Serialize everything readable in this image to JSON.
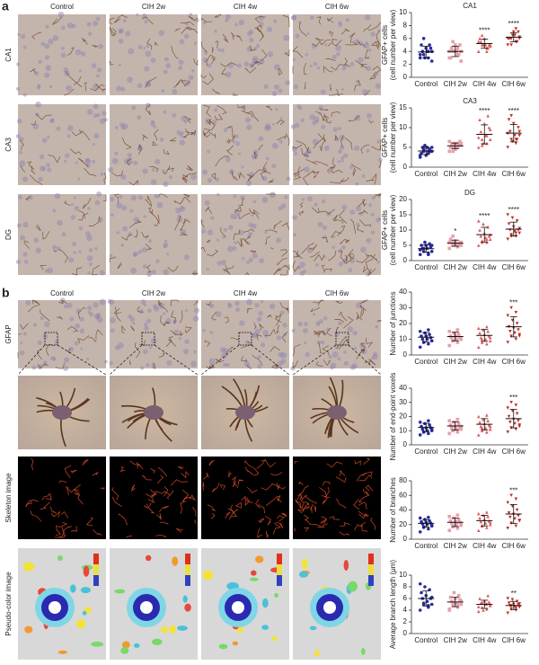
{
  "panel_a": {
    "label": "a",
    "columns": [
      "Control",
      "CIH 2w",
      "CIH 4w",
      "CIH 6w"
    ],
    "rows": [
      "CA1",
      "CA3",
      "DG"
    ]
  },
  "panel_b": {
    "label": "b",
    "columns": [
      "Control",
      "CIH 2w",
      "CIH 4w",
      "CIH 6w"
    ],
    "rows": [
      "GFAP",
      "Skeleton image",
      "Pseudo-color image"
    ]
  },
  "chart_data": [
    {
      "type": "strip",
      "title": "CA1",
      "ylabel": [
        "GFAP+ cells",
        "(cell number per view)"
      ],
      "categories": [
        "Control",
        "CIH 2w",
        "CIH 4w",
        "CIH 6w"
      ],
      "ylim": [
        0,
        10
      ],
      "yticks": [
        0,
        2,
        4,
        6,
        8,
        10
      ],
      "significance": [
        null,
        null,
        "****",
        "****"
      ],
      "series": [
        {
          "color": "#2b2b9c",
          "marker": "circle",
          "mean": 3.9,
          "sd": 0.9,
          "values": [
            3,
            3,
            3.5,
            4,
            4,
            4,
            4.5,
            4.5,
            5,
            5,
            3,
            3.5,
            4,
            6,
            2.5
          ]
        },
        {
          "color": "#e8a0aa",
          "marker": "square",
          "mean": 4.0,
          "sd": 0.8,
          "values": [
            3,
            3.5,
            4,
            4,
            4,
            4.5,
            5,
            5,
            3,
            3.5,
            4,
            4,
            4.5,
            5.5,
            2.5
          ]
        },
        {
          "color": "#e05a5a",
          "marker": "triangle",
          "mean": 5.2,
          "sd": 0.7,
          "values": [
            4,
            4.5,
            5,
            5,
            5,
            5.5,
            5,
            6,
            6,
            4.5,
            5,
            5.5,
            4,
            6.5,
            4.8
          ]
        },
        {
          "color": "#c0302a",
          "marker": "down",
          "mean": 6.2,
          "sd": 0.7,
          "values": [
            5,
            5.5,
            6,
            6,
            6.5,
            6,
            7,
            7,
            6,
            5.5,
            6.5,
            6,
            7.5,
            5,
            6.2
          ]
        }
      ]
    },
    {
      "type": "strip",
      "title": "CA3",
      "ylabel": [
        "GFAP+ cells",
        "(cell number per view)"
      ],
      "categories": [
        "Control",
        "CIH 2w",
        "CIH 4w",
        "CIH 6w"
      ],
      "ylim": [
        0,
        15
      ],
      "yticks": [
        0,
        5,
        10,
        15
      ],
      "significance": [
        null,
        null,
        "****",
        "****"
      ],
      "series": [
        {
          "color": "#2b2b9c",
          "marker": "circle",
          "mean": 4.1,
          "sd": 0.9,
          "values": [
            3,
            3.5,
            4,
            4,
            5,
            5,
            4,
            3,
            3.5,
            4.5,
            5.5,
            2.5,
            4,
            4.5,
            5
          ]
        },
        {
          "color": "#e8a0aa",
          "marker": "square",
          "mean": 5.4,
          "sd": 0.7,
          "values": [
            4,
            5,
            5,
            5.5,
            6,
            6,
            6.5,
            4.5,
            5,
            5.5,
            6,
            6.5,
            5,
            4,
            6
          ]
        },
        {
          "color": "#e05a5a",
          "marker": "triangle",
          "mean": 8.3,
          "sd": 2.4,
          "values": [
            5,
            6,
            7,
            7,
            8,
            9,
            10,
            11,
            12,
            13,
            6,
            7.5,
            8,
            5.5,
            9.5
          ]
        },
        {
          "color": "#c0302a",
          "marker": "down",
          "mean": 8.6,
          "sd": 2.2,
          "values": [
            5,
            6,
            7,
            8,
            8,
            9,
            10,
            11,
            12,
            7,
            6.5,
            8.5,
            7,
            13,
            9
          ]
        }
      ]
    },
    {
      "type": "strip",
      "title": "DG",
      "ylabel": [
        "GFAP+ cells",
        "(cell number per view)"
      ],
      "categories": [
        "Control",
        "CIH 2w",
        "CIH 4w",
        "CIH 6w"
      ],
      "ylim": [
        0,
        20
      ],
      "yticks": [
        0,
        5,
        10,
        15,
        20
      ],
      "significance": [
        null,
        "*",
        "****",
        "****"
      ],
      "series": [
        {
          "color": "#2b2b9c",
          "marker": "circle",
          "mean": 3.9,
          "sd": 1.2,
          "values": [
            2,
            2,
            3,
            3,
            4,
            4,
            4.5,
            5,
            5,
            5.5,
            6,
            3.5,
            2.5,
            4,
            5
          ]
        },
        {
          "color": "#e8a0aa",
          "marker": "square",
          "mean": 5.7,
          "sd": 1.0,
          "values": [
            4,
            4.5,
            5,
            5,
            5.5,
            6,
            6,
            6.5,
            7,
            5,
            5.5,
            6,
            4.5,
            8,
            6
          ]
        },
        {
          "color": "#e05a5a",
          "marker": "triangle",
          "mean": 8.5,
          "sd": 2.4,
          "values": [
            5,
            6,
            6.5,
            7,
            7.5,
            8,
            8,
            9,
            10,
            11,
            12,
            13,
            7,
            6,
            8.5
          ]
        },
        {
          "color": "#c0302a",
          "marker": "down",
          "mean": 10.3,
          "sd": 2.3,
          "values": [
            7,
            8,
            8.5,
            9,
            9.5,
            10,
            10,
            11,
            12,
            13,
            14,
            15,
            9,
            8,
            10.5
          ]
        }
      ]
    },
    {
      "type": "strip",
      "ylabel": [
        "Number of junctions"
      ],
      "categories": [
        "Control",
        "CIH 2w",
        "CIH 4w",
        "CIH 6w"
      ],
      "ylim": [
        0,
        40
      ],
      "yticks": [
        0,
        10,
        20,
        30,
        40
      ],
      "significance": [
        null,
        null,
        null,
        "***"
      ],
      "series": [
        {
          "color": "#2b2b9c",
          "marker": "circle",
          "mean": 11.3,
          "sd": 3.0,
          "values": [
            5,
            7,
            8,
            9,
            10,
            10,
            11,
            12,
            12,
            13,
            14,
            15,
            16,
            8,
            9
          ]
        },
        {
          "color": "#e8a0aa",
          "marker": "square",
          "mean": 11.7,
          "sd": 2.7,
          "values": [
            6,
            8,
            9,
            10,
            10,
            11,
            11,
            12,
            12,
            13,
            14,
            15,
            16,
            9,
            10
          ]
        },
        {
          "color": "#e05a5a",
          "marker": "triangle",
          "mean": 12.4,
          "sd": 3.8,
          "values": [
            5,
            7,
            8,
            9,
            10,
            11,
            12,
            13,
            14,
            15,
            16,
            17,
            18,
            10,
            11
          ]
        },
        {
          "color": "#c0302a",
          "marker": "down",
          "mean": 17.9,
          "sd": 6.4,
          "values": [
            8,
            10,
            12,
            13,
            14,
            15,
            16,
            17,
            18,
            20,
            22,
            25,
            27,
            30,
            12
          ]
        }
      ]
    },
    {
      "type": "strip",
      "ylabel": [
        "Number of end-point voxels"
      ],
      "categories": [
        "Control",
        "CIH 2w",
        "CIH 4w",
        "CIH 6w"
      ],
      "ylim": [
        0,
        40
      ],
      "yticks": [
        0,
        10,
        20,
        30,
        40
      ],
      "significance": [
        null,
        null,
        null,
        "***"
      ],
      "series": [
        {
          "color": "#2b2b9c",
          "marker": "circle",
          "mean": 12.3,
          "sd": 2.9,
          "values": [
            7,
            8,
            9,
            10,
            10,
            11,
            12,
            12,
            13,
            14,
            15,
            16,
            17,
            9,
            11
          ]
        },
        {
          "color": "#e8a0aa",
          "marker": "square",
          "mean": 13.3,
          "sd": 2.9,
          "values": [
            8,
            9,
            10,
            11,
            11,
            12,
            12,
            13,
            14,
            15,
            16,
            17,
            18,
            10,
            13
          ]
        },
        {
          "color": "#e05a5a",
          "marker": "triangle",
          "mean": 14.5,
          "sd": 4.0,
          "values": [
            7,
            9,
            10,
            11,
            12,
            13,
            14,
            15,
            16,
            17,
            18,
            20,
            21,
            12,
            13
          ]
        },
        {
          "color": "#c0302a",
          "marker": "down",
          "mean": 18.5,
          "sd": 6.5,
          "values": [
            9,
            11,
            12,
            14,
            15,
            16,
            17,
            18,
            20,
            22,
            24,
            26,
            28,
            30,
            13
          ]
        }
      ]
    },
    {
      "type": "strip",
      "ylabel": [
        "Number of branches"
      ],
      "categories": [
        "Control",
        "CIH 2w",
        "CIH 4w",
        "CIH 6w"
      ],
      "ylim": [
        0,
        80
      ],
      "yticks": [
        0,
        20,
        40,
        60,
        80
      ],
      "significance": [
        null,
        null,
        null,
        "***"
      ],
      "series": [
        {
          "color": "#2b2b9c",
          "marker": "circle",
          "mean": 21.7,
          "sd": 5.2,
          "values": [
            10,
            14,
            16,
            18,
            20,
            21,
            22,
            23,
            24,
            25,
            27,
            29,
            30,
            17,
            19
          ]
        },
        {
          "color": "#e8a0aa",
          "marker": "square",
          "mean": 23.1,
          "sd": 5.8,
          "values": [
            12,
            15,
            17,
            19,
            20,
            22,
            23,
            24,
            25,
            27,
            29,
            31,
            33,
            18,
            21
          ]
        },
        {
          "color": "#e05a5a",
          "marker": "triangle",
          "mean": 25.4,
          "sd": 7.2,
          "values": [
            12,
            16,
            18,
            20,
            22,
            24,
            25,
            27,
            29,
            31,
            33,
            35,
            37,
            19,
            23
          ]
        },
        {
          "color": "#c0302a",
          "marker": "down",
          "mean": 34.4,
          "sd": 13,
          "values": [
            15,
            18,
            22,
            25,
            28,
            30,
            32,
            34,
            36,
            40,
            45,
            50,
            55,
            60,
            26
          ]
        }
      ]
    },
    {
      "type": "strip",
      "ylabel": [
        "Average branch length (μm)"
      ],
      "categories": [
        "Control",
        "CIH 2w",
        "CIH 4w",
        "CIH 6w"
      ],
      "ylim": [
        0,
        10
      ],
      "yticks": [
        0,
        2,
        4,
        6,
        8,
        10
      ],
      "significance": [
        null,
        null,
        null,
        "**"
      ],
      "series": [
        {
          "color": "#2b2b9c",
          "marker": "circle",
          "mean": 6.0,
          "sd": 1.3,
          "values": [
            4,
            4.5,
            5,
            5,
            5.5,
            6,
            6,
            6.5,
            7,
            7.5,
            8,
            8.5,
            4.8,
            5.2,
            6.2
          ]
        },
        {
          "color": "#e8a0aa",
          "marker": "square",
          "mean": 5.4,
          "sd": 0.8,
          "values": [
            4,
            4.5,
            4.8,
            5,
            5.2,
            5.5,
            5.8,
            6,
            6.2,
            6.5,
            7,
            4.2,
            5,
            5.3,
            5.6
          ]
        },
        {
          "color": "#e05a5a",
          "marker": "triangle",
          "mean": 5.0,
          "sd": 0.7,
          "values": [
            3.8,
            4.2,
            4.5,
            4.8,
            5,
            5.2,
            5.4,
            5.6,
            6,
            6.5,
            4,
            4.6,
            5.1,
            5.3,
            4.9
          ]
        },
        {
          "color": "#c0302a",
          "marker": "down",
          "mean": 4.8,
          "sd": 0.7,
          "values": [
            3.5,
            4,
            4.2,
            4.5,
            4.6,
            4.8,
            5,
            5,
            5.2,
            5.5,
            5.8,
            6,
            4.4,
            4.7,
            5.1
          ]
        }
      ]
    }
  ]
}
